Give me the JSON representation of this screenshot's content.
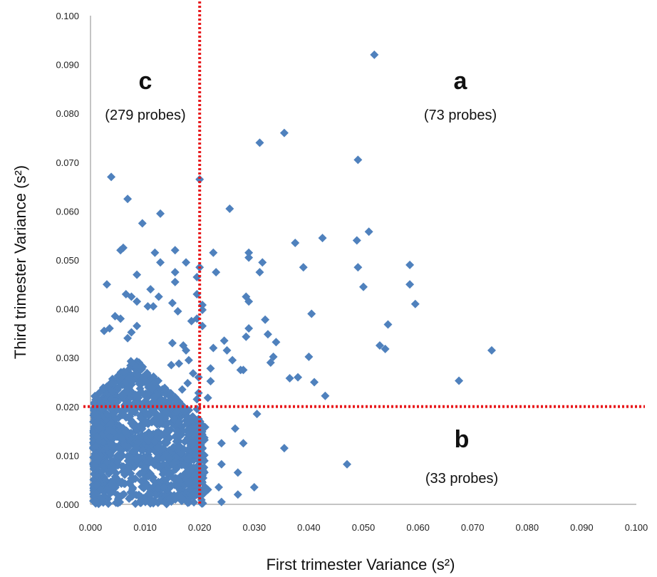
{
  "chart_data": {
    "type": "scatter",
    "xlabel": "First trimester Variance (s²)",
    "ylabel": "Third trimester Variance (s²)",
    "xlim": [
      0,
      0.1
    ],
    "ylim": [
      0,
      0.1
    ],
    "x_ticks": [
      "0.000",
      "0.010",
      "0.020",
      "0.030",
      "0.040",
      "0.050",
      "0.060",
      "0.070",
      "0.080",
      "0.090",
      "0.100"
    ],
    "y_ticks": [
      "0.000",
      "0.010",
      "0.020",
      "0.030",
      "0.040",
      "0.050",
      "0.060",
      "0.070",
      "0.080",
      "0.090",
      "0.100"
    ],
    "grid": false,
    "marker": "diamond",
    "point_color": "#4F81BD",
    "threshold_color": "#E8181B",
    "thresholds": {
      "x": 0.02,
      "y": 0.02
    },
    "regions": [
      {
        "letter": "a",
        "count": "(73 probes)"
      },
      {
        "letter": "b",
        "count": "(33 probes)"
      },
      {
        "letter": "c",
        "count": "(279 probes)"
      }
    ],
    "points": [
      [
        0.052,
        0.092
      ],
      [
        0.0355,
        0.076
      ],
      [
        0.031,
        0.074
      ],
      [
        0.049,
        0.0705
      ],
      [
        0.0735,
        0.0315
      ],
      [
        0.0675,
        0.0253
      ],
      [
        0.0595,
        0.041
      ],
      [
        0.0585,
        0.045
      ],
      [
        0.0585,
        0.049
      ],
      [
        0.0545,
        0.0368
      ],
      [
        0.054,
        0.0318
      ],
      [
        0.053,
        0.0325
      ],
      [
        0.051,
        0.0558
      ],
      [
        0.05,
        0.0445
      ],
      [
        0.049,
        0.0485
      ],
      [
        0.0488,
        0.054
      ],
      [
        0.047,
        0.0082
      ],
      [
        0.0425,
        0.0545
      ],
      [
        0.043,
        0.0222
      ],
      [
        0.0405,
        0.039
      ],
      [
        0.041,
        0.025
      ],
      [
        0.04,
        0.0302
      ],
      [
        0.039,
        0.0485
      ],
      [
        0.038,
        0.026
      ],
      [
        0.0375,
        0.0535
      ],
      [
        0.0365,
        0.0258
      ],
      [
        0.0355,
        0.0115
      ],
      [
        0.034,
        0.0332
      ],
      [
        0.0335,
        0.0302
      ],
      [
        0.033,
        0.029
      ],
      [
        0.0325,
        0.0348
      ],
      [
        0.032,
        0.0378
      ],
      [
        0.0315,
        0.0495
      ],
      [
        0.031,
        0.0475
      ],
      [
        0.0305,
        0.0185
      ],
      [
        0.03,
        0.0035
      ],
      [
        0.029,
        0.0515
      ],
      [
        0.029,
        0.0505
      ],
      [
        0.029,
        0.0415
      ],
      [
        0.0285,
        0.0425
      ],
      [
        0.029,
        0.036
      ],
      [
        0.0285,
        0.0343
      ],
      [
        0.028,
        0.0275
      ],
      [
        0.028,
        0.0125
      ],
      [
        0.027,
        0.0065
      ],
      [
        0.027,
        0.002
      ],
      [
        0.0275,
        0.0275
      ],
      [
        0.0265,
        0.0155
      ],
      [
        0.0255,
        0.0605
      ],
      [
        0.026,
        0.0295
      ],
      [
        0.025,
        0.0315
      ],
      [
        0.0245,
        0.0335
      ],
      [
        0.024,
        0.0125
      ],
      [
        0.024,
        0.0082
      ],
      [
        0.0235,
        0.0035
      ],
      [
        0.024,
        0.0005
      ],
      [
        0.0225,
        0.0515
      ],
      [
        0.023,
        0.0475
      ],
      [
        0.0225,
        0.032
      ],
      [
        0.022,
        0.0278
      ],
      [
        0.022,
        0.0252
      ],
      [
        0.0215,
        0.0218
      ],
      [
        0.021,
        0.0158
      ],
      [
        0.0205,
        0.0365
      ],
      [
        0.0205,
        0.0398
      ],
      [
        0.0205,
        0.0408
      ],
      [
        0.0205,
        0.0045
      ],
      [
        0.0215,
        0.003
      ],
      [
        0.02,
        0.0665
      ],
      [
        0.02,
        0.0485
      ],
      [
        0.0195,
        0.043
      ],
      [
        0.0195,
        0.038
      ],
      [
        0.0198,
        0.026
      ],
      [
        0.0198,
        0.0228
      ],
      [
        0.0195,
        0.0215
      ],
      [
        0.0195,
        0.0195
      ],
      [
        0.0198,
        0.0175
      ],
      [
        0.0198,
        0.015
      ],
      [
        0.0198,
        0.012
      ],
      [
        0.0198,
        0.009
      ],
      [
        0.0198,
        0.006
      ],
      [
        0.0198,
        0.003
      ],
      [
        0.0038,
        0.067
      ],
      [
        0.0068,
        0.0625
      ],
      [
        0.0128,
        0.0595
      ],
      [
        0.0095,
        0.0575
      ],
      [
        0.0155,
        0.052
      ],
      [
        0.006,
        0.0525
      ],
      [
        0.0055,
        0.052
      ],
      [
        0.0118,
        0.0515
      ],
      [
        0.0128,
        0.0495
      ],
      [
        0.0085,
        0.047
      ],
      [
        0.0155,
        0.0475
      ],
      [
        0.0155,
        0.0455
      ],
      [
        0.0175,
        0.0495
      ],
      [
        0.0195,
        0.0465
      ],
      [
        0.003,
        0.045
      ],
      [
        0.011,
        0.044
      ],
      [
        0.0125,
        0.0425
      ],
      [
        0.0065,
        0.043
      ],
      [
        0.0075,
        0.0425
      ],
      [
        0.0085,
        0.0415
      ],
      [
        0.0055,
        0.038
      ],
      [
        0.0045,
        0.0385
      ],
      [
        0.0035,
        0.036
      ],
      [
        0.0025,
        0.0355
      ],
      [
        0.0115,
        0.0405
      ],
      [
        0.0105,
        0.0405
      ],
      [
        0.015,
        0.0412
      ],
      [
        0.016,
        0.0395
      ],
      [
        0.0185,
        0.0375
      ],
      [
        0.0085,
        0.0365
      ],
      [
        0.0075,
        0.0352
      ],
      [
        0.0068,
        0.034
      ],
      [
        0.015,
        0.033
      ],
      [
        0.017,
        0.0325
      ],
      [
        0.0175,
        0.0315
      ],
      [
        0.018,
        0.0295
      ],
      [
        0.0148,
        0.0285
      ],
      [
        0.0162,
        0.0288
      ],
      [
        0.0188,
        0.0268
      ],
      [
        0.0178,
        0.0248
      ],
      [
        0.0168,
        0.0235
      ],
      [
        0.0158,
        0.0215
      ],
      [
        0.0108,
        0.0095
      ],
      [
        0.0115,
        0.0055
      ],
      [
        0.0135,
        0.0035
      ],
      [
        0.0145,
        0.0012
      ],
      [
        0.0168,
        0.0012
      ],
      [
        0.0178,
        0.0045
      ]
    ]
  }
}
